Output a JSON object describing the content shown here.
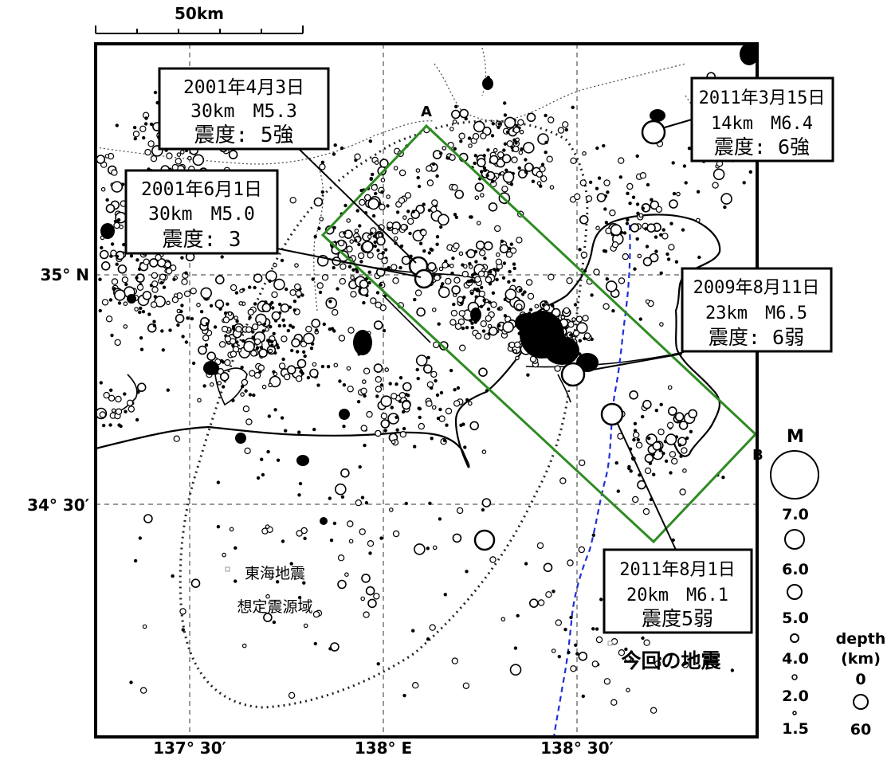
{
  "scale_bar": {
    "label": "50km"
  },
  "axes": {
    "lat_labels": [
      "35° N",
      "34° 30′"
    ],
    "lon_labels": [
      "137° 30′",
      "138° E",
      "138° 30′"
    ]
  },
  "section_line": {
    "start_label": "A",
    "end_label": "B"
  },
  "callouts": [
    {
      "date": "2001年4月3日",
      "depth_mag": "30km　M5.3",
      "intensity": "震度: 5強"
    },
    {
      "date": "2001年6月1日",
      "depth_mag": "30km　M5.0",
      "intensity": "震度: 3"
    },
    {
      "date": "2011年3月15日",
      "depth_mag": "14km　M6.4",
      "intensity": "震度: 6強"
    },
    {
      "date": "2009年8月11日",
      "depth_mag": "23km　M6.5",
      "intensity": "震度: 6弱"
    },
    {
      "date": "2011年8月1日",
      "depth_mag": "20km　M6.1",
      "intensity": "震度5弱"
    }
  ],
  "tokai_zone_label": [
    "東海地震",
    "想定震源域"
  ],
  "current_event_label": "今回の地震",
  "magnitude_legend": {
    "title": "M",
    "values": [
      "7.0",
      "6.0",
      "5.0",
      "4.0",
      "2.0",
      "1.5"
    ]
  },
  "depth_legend": {
    "title_line1": "depth",
    "title_line2": "(km)",
    "values": [
      "0",
      "60"
    ]
  },
  "colors": {
    "section_box": "#2e8b22",
    "blue_line": "#1f2fd6"
  }
}
